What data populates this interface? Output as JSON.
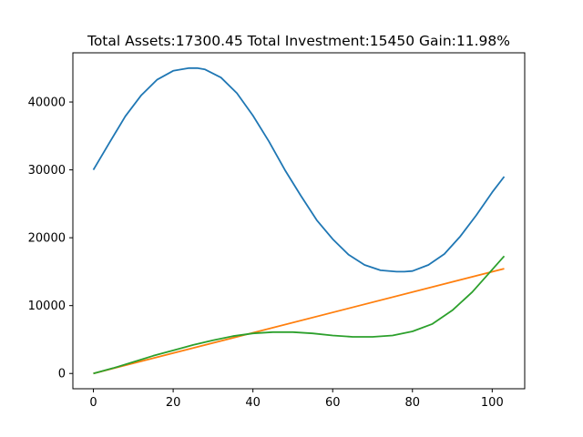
{
  "chart_data": {
    "type": "line",
    "title": "Total Assets:17300.45  Total Investment:15450  Gain:11.98%",
    "xlabel": "",
    "ylabel": "",
    "xlim": [
      -5.15,
      108.15
    ],
    "ylim": [
      -2250,
      47250
    ],
    "xticks": [
      0,
      20,
      40,
      60,
      80,
      100
    ],
    "yticks": [
      0,
      10000,
      20000,
      30000,
      40000
    ],
    "grid": false,
    "legend": "none",
    "series": [
      {
        "color": "#1f77b4",
        "x": [
          0,
          4,
          8,
          12,
          16,
          20,
          24,
          26,
          28,
          32,
          36,
          40,
          44,
          48,
          52,
          56,
          60,
          64,
          68,
          72,
          76,
          78,
          80,
          84,
          88,
          92,
          96,
          100,
          103
        ],
        "y": [
          30000,
          34000,
          37900,
          41000,
          43300,
          44600,
          45000,
          45000,
          44800,
          43600,
          41300,
          38000,
          34200,
          30000,
          26200,
          22600,
          19800,
          17500,
          16000,
          15200,
          15000,
          15000,
          15100,
          16000,
          17600,
          20200,
          23300,
          26700,
          29000
        ]
      },
      {
        "color": "#ff7f0e",
        "x": [
          0,
          103
        ],
        "y": [
          0,
          15450
        ]
      },
      {
        "color": "#2ca02c",
        "x": [
          0,
          5,
          10,
          15,
          20,
          25,
          30,
          35,
          40,
          45,
          50,
          55,
          60,
          65,
          70,
          75,
          80,
          85,
          90,
          95,
          100,
          103
        ],
        "y": [
          0,
          800,
          1700,
          2600,
          3400,
          4200,
          4900,
          5500,
          5900,
          6100,
          6100,
          5900,
          5600,
          5400,
          5400,
          5600,
          6200,
          7300,
          9300,
          12000,
          15300,
          17300
        ]
      }
    ]
  }
}
